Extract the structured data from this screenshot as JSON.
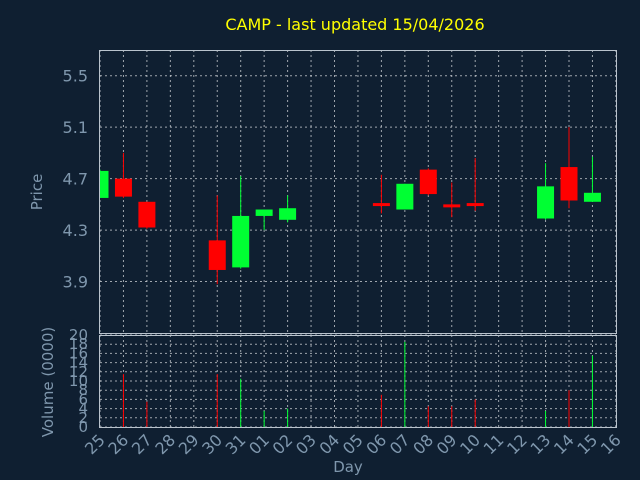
{
  "chart_data": {
    "type": "candlestick",
    "title": "CAMP - last updated 15/04/2026",
    "xlabel": "Day",
    "ylabel": "Price",
    "volume_label": "Volume (0000)",
    "grid": true,
    "price_ticks": [
      "3.9",
      "4.3",
      "4.7",
      "5.1",
      "5.5"
    ],
    "volume_ticks": [
      "0",
      "2",
      "4",
      "6",
      "8",
      "10",
      "12",
      "14",
      "16",
      "18",
      "20"
    ],
    "price_ylim": [
      3.5,
      5.7
    ],
    "volume_ylim": [
      0,
      20
    ],
    "up_color": "#00ff33",
    "down_color": "#ff0000",
    "days": [
      "25",
      "26",
      "27",
      "28",
      "29",
      "30",
      "31",
      "01",
      "02",
      "03",
      "04",
      "05",
      "06",
      "07",
      "08",
      "09",
      "10",
      "11",
      "12",
      "13",
      "14",
      "15",
      "16"
    ],
    "candles": [
      {
        "day": "25",
        "open": 4.55,
        "high": 4.77,
        "low": 4.55,
        "close": 4.76,
        "volume": 0
      },
      {
        "day": "26",
        "open": 4.7,
        "high": 4.9,
        "low": 4.55,
        "close": 4.56,
        "volume": 11.5
      },
      {
        "day": "27",
        "open": 4.52,
        "high": 4.52,
        "low": 4.31,
        "close": 4.32,
        "volume": 5.5
      },
      {
        "day": "30",
        "open": 4.22,
        "high": 4.57,
        "low": 3.88,
        "close": 3.99,
        "volume": 11.5
      },
      {
        "day": "31",
        "open": 4.01,
        "high": 4.72,
        "low": 4.0,
        "close": 4.41,
        "volume": 10.5
      },
      {
        "day": "01",
        "open": 4.41,
        "high": 4.46,
        "low": 4.3,
        "close": 4.46,
        "volume": 3.5
      },
      {
        "day": "02",
        "open": 4.38,
        "high": 4.57,
        "low": 4.36,
        "close": 4.47,
        "volume": 4.0
      },
      {
        "day": "06",
        "open": 4.51,
        "high": 4.73,
        "low": 4.43,
        "close": 4.49,
        "volume": 7.0
      },
      {
        "day": "07",
        "open": 4.46,
        "high": 4.66,
        "low": 4.46,
        "close": 4.66,
        "volume": 18.5
      },
      {
        "day": "08",
        "open": 4.77,
        "high": 4.78,
        "low": 4.57,
        "close": 4.58,
        "volume": 4.5
      },
      {
        "day": "09",
        "open": 4.5,
        "high": 4.67,
        "low": 4.4,
        "close": 4.49,
        "volume": 4.5
      },
      {
        "day": "10",
        "open": 4.51,
        "high": 4.86,
        "low": 4.45,
        "close": 4.49,
        "volume": 6.0
      },
      {
        "day": "13",
        "open": 4.39,
        "high": 4.82,
        "low": 4.38,
        "close": 4.64,
        "volume": 3.5
      },
      {
        "day": "14",
        "open": 4.79,
        "high": 5.1,
        "low": 4.47,
        "close": 4.53,
        "volume": 8.0
      },
      {
        "day": "15",
        "open": 4.52,
        "high": 4.87,
        "low": 4.52,
        "close": 4.59,
        "volume": 15.5
      }
    ]
  }
}
